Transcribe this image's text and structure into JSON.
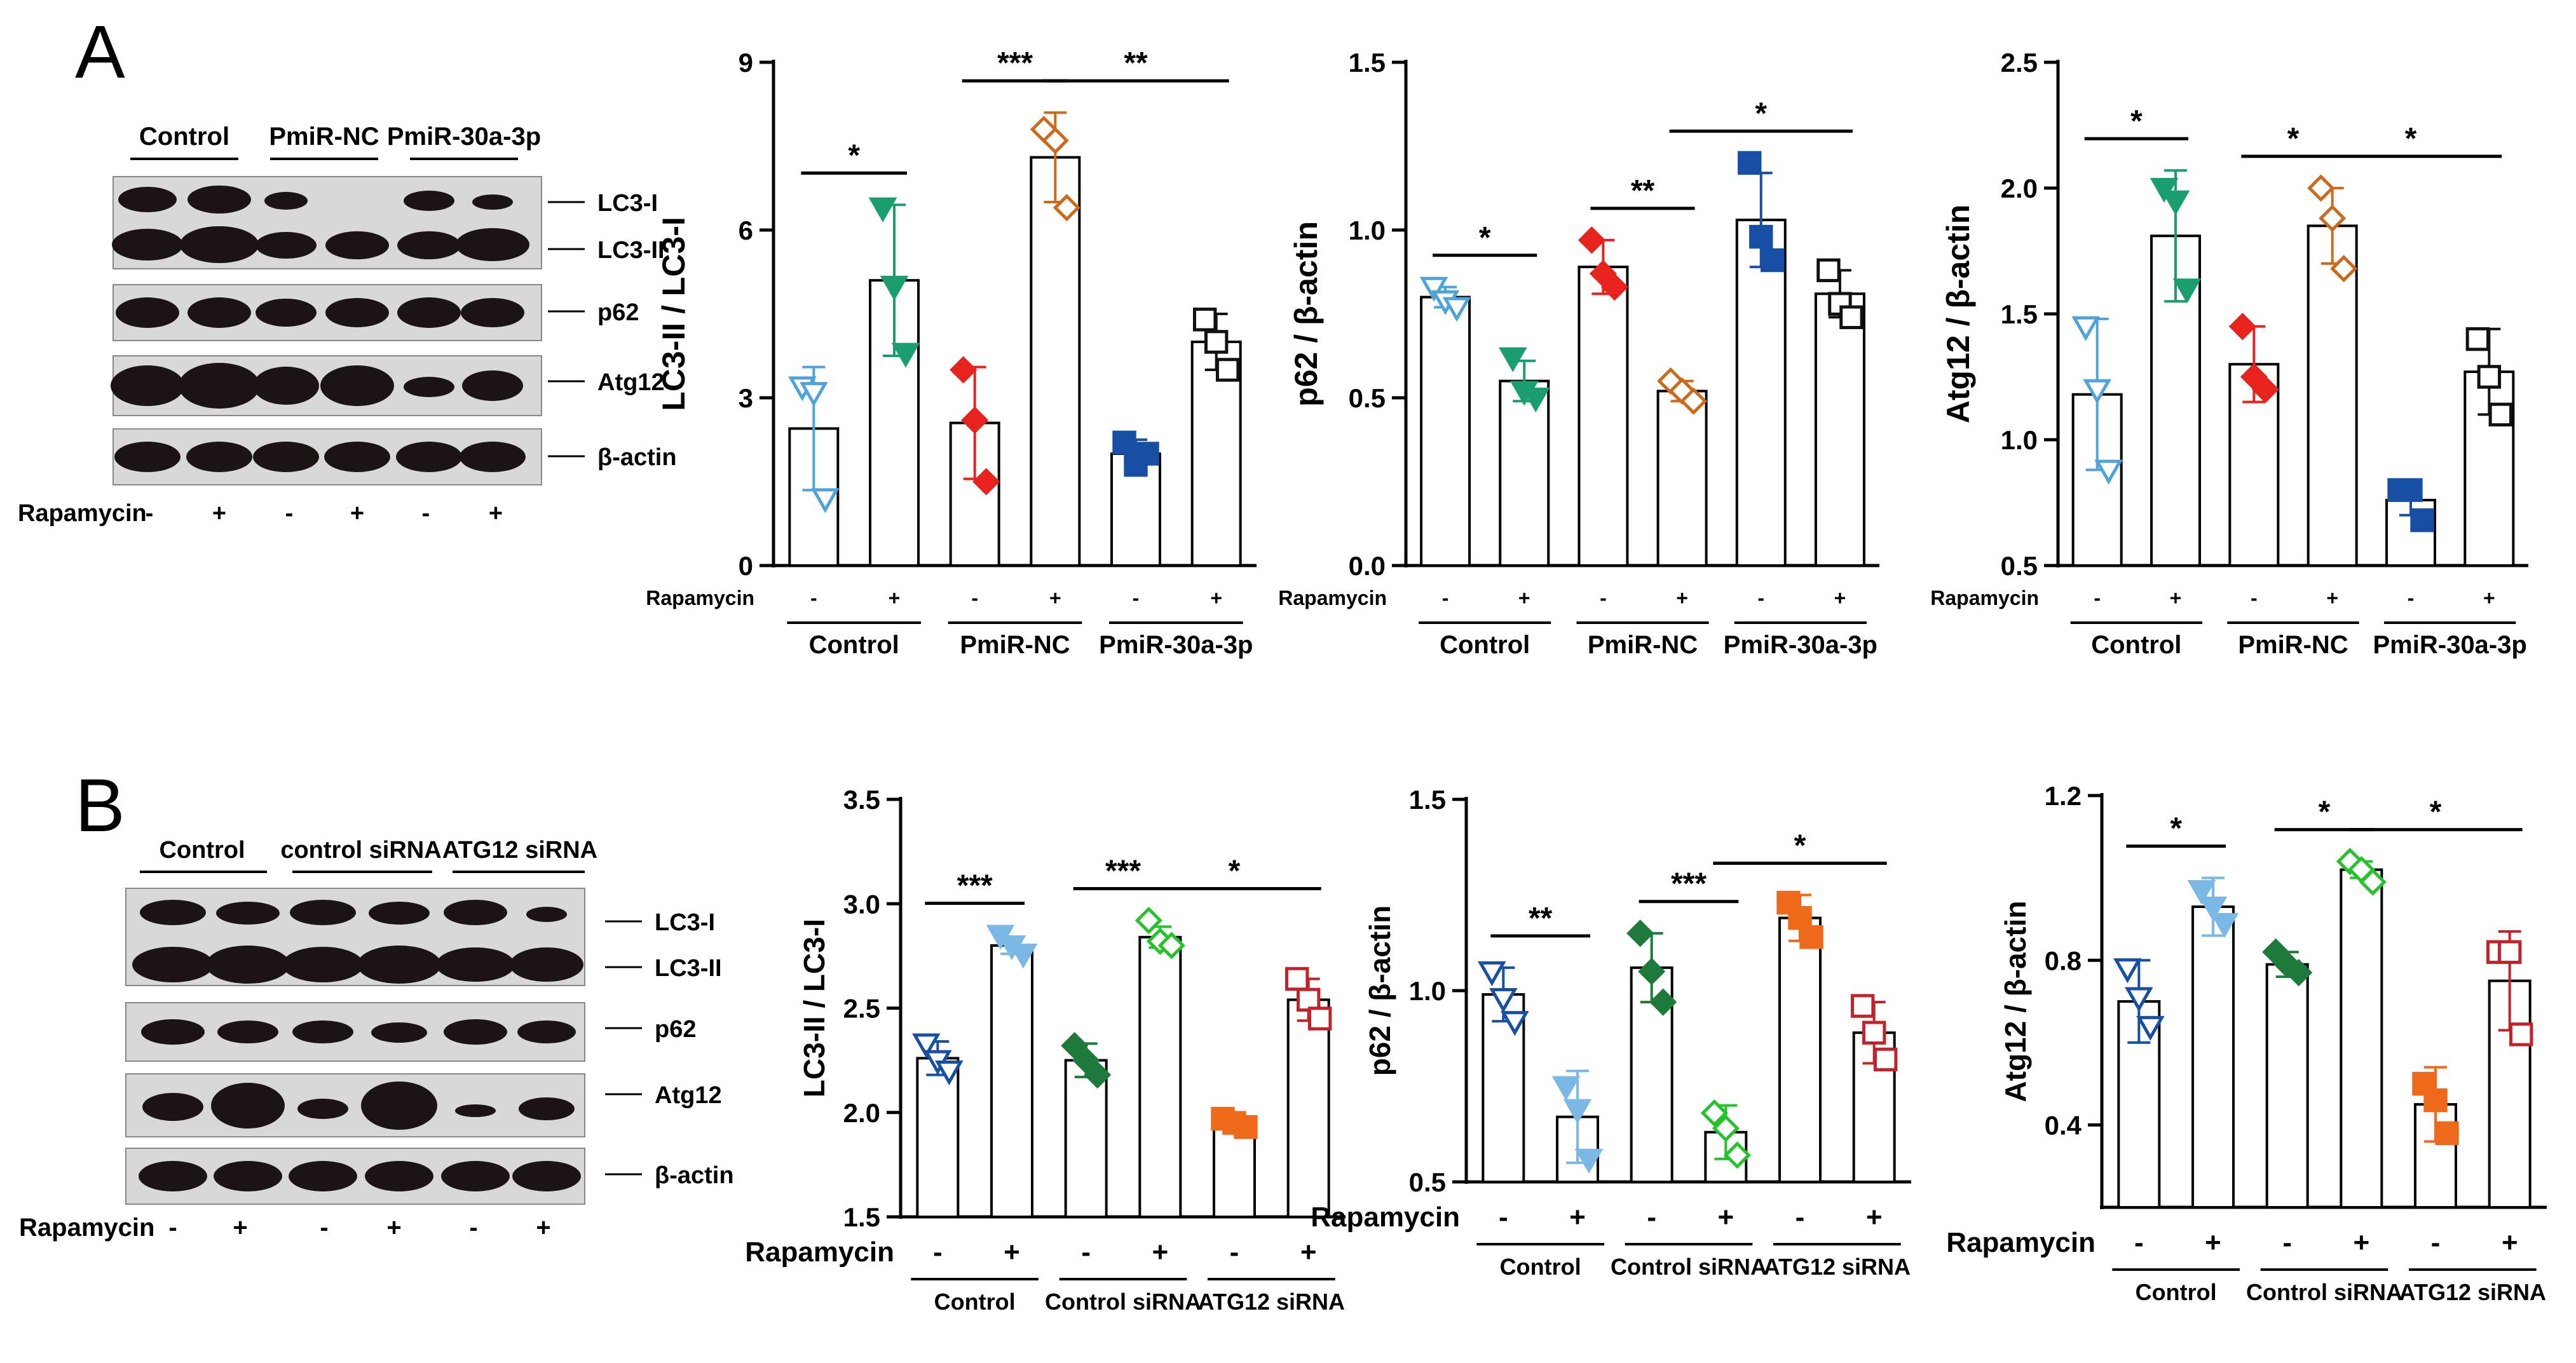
{
  "panels": {
    "A": {
      "letter": "A",
      "blot": {
        "group_labels": [
          "Control",
          "PmiR-NC",
          "PmiR-30a-3p"
        ],
        "band_labels": [
          "LC3-I",
          "LC3-II",
          "p62",
          "Atg12",
          "β-actin"
        ],
        "rapamycin_label": "Rapamycin",
        "treatment_signs": [
          "-",
          "+",
          "-",
          "+",
          "-",
          "+"
        ]
      }
    },
    "B": {
      "letter": "B",
      "blot": {
        "group_labels": [
          "Control",
          "control siRNA",
          "ATG12 siRNA"
        ],
        "band_labels": [
          "LC3-I",
          "LC3-II",
          "p62",
          "Atg12",
          "β-actin"
        ],
        "rapamycin_label": "Rapamycin",
        "treatment_signs": [
          "-",
          "+",
          "-",
          "+",
          "-",
          "+"
        ]
      }
    }
  },
  "chart_data": [
    {
      "type": "bar",
      "panel": "A",
      "ylabel": "LC3-II / LC3-I",
      "ylim": [
        0,
        9
      ],
      "yticks": [
        "0",
        "3",
        "6",
        "9"
      ],
      "rapamycin_label": "Rapamycin",
      "signs": [
        "-",
        "+",
        "-",
        "+",
        "-",
        "+"
      ],
      "groups": [
        "Control",
        "PmiR-NC",
        "PmiR-30a-3p"
      ],
      "values": [
        2.45,
        5.1,
        2.55,
        7.3,
        2.0,
        4.0
      ],
      "sd": [
        1.1,
        1.35,
        1.0,
        0.8,
        0.25,
        0.5
      ],
      "points": [
        [
          3.2,
          3.1,
          1.2
        ],
        [
          6.4,
          5.0,
          3.8
        ],
        [
          3.5,
          2.6,
          1.5
        ],
        [
          7.8,
          7.6,
          6.4
        ],
        [
          2.2,
          1.8,
          2.0
        ],
        [
          4.4,
          4.0,
          3.5
        ]
      ],
      "colors": [
        "#4fa3d9",
        "#1a9e6e",
        "#e8231e",
        "#cc6a1c",
        "#164fa3",
        "#111111"
      ],
      "markers": [
        "tri-down-open",
        "tri-down-filled",
        "diamond-filled",
        "diamond-open",
        "square-filled",
        "square-open"
      ],
      "significance": [
        {
          "from": 0,
          "to": 1,
          "label": "*"
        },
        {
          "from": 2,
          "to": 3,
          "label": "***"
        },
        {
          "from": 3,
          "to": 5,
          "label": "**"
        }
      ]
    },
    {
      "type": "bar",
      "panel": "A",
      "ylabel": "p62 / β-actin",
      "ylim": [
        0,
        1.5
      ],
      "yticks": [
        "0.0",
        "0.5",
        "1.0",
        "1.5"
      ],
      "rapamycin_label": "Rapamycin",
      "signs": [
        "-",
        "+",
        "-",
        "+",
        "-",
        "+"
      ],
      "groups": [
        "Control",
        "PmiR-NC",
        "PmiR-30a-3p"
      ],
      "values": [
        0.8,
        0.55,
        0.89,
        0.52,
        1.03,
        0.81
      ],
      "sd": [
        0.03,
        0.06,
        0.08,
        0.03,
        0.14,
        0.07
      ],
      "points": [
        [
          0.83,
          0.79,
          0.77
        ],
        [
          0.62,
          0.52,
          0.5
        ],
        [
          0.97,
          0.87,
          0.83
        ],
        [
          0.55,
          0.52,
          0.49
        ],
        [
          1.2,
          0.98,
          0.91
        ],
        [
          0.88,
          0.78,
          0.74
        ]
      ],
      "colors": [
        "#4fa3d9",
        "#1a9e6e",
        "#e8231e",
        "#cc6a1c",
        "#164fa3",
        "#111111"
      ],
      "markers": [
        "tri-down-open",
        "tri-down-filled",
        "diamond-filled",
        "diamond-open",
        "square-filled",
        "square-open"
      ],
      "significance": [
        {
          "from": 0,
          "to": 1,
          "label": "*"
        },
        {
          "from": 2,
          "to": 3,
          "label": "**"
        },
        {
          "from": 3,
          "to": 5,
          "label": "*"
        }
      ]
    },
    {
      "type": "bar",
      "panel": "A",
      "ylabel": "Atg12 / β-actin",
      "ylim": [
        0.5,
        2.5
      ],
      "yticks": [
        "0.5",
        "1.0",
        "1.5",
        "2.0",
        "2.5"
      ],
      "rapamycin_label": "Rapamycin",
      "signs": [
        "-",
        "+",
        "-",
        "+",
        "-",
        "+"
      ],
      "groups": [
        "Control",
        "PmiR-NC",
        "PmiR-30a-3p"
      ],
      "values": [
        1.18,
        1.81,
        1.3,
        1.85,
        0.76,
        1.27
      ],
      "sd": [
        0.3,
        0.26,
        0.15,
        0.15,
        0.06,
        0.17
      ],
      "points": [
        [
          1.45,
          1.2,
          0.88
        ],
        [
          2.0,
          1.95,
          1.6
        ],
        [
          1.45,
          1.25,
          1.2
        ],
        [
          2.0,
          1.88,
          1.68
        ],
        [
          0.8,
          0.8,
          0.68
        ],
        [
          1.4,
          1.25,
          1.1
        ]
      ],
      "colors": [
        "#4fa3d9",
        "#1a9e6e",
        "#e8231e",
        "#cc6a1c",
        "#164fa3",
        "#111111"
      ],
      "markers": [
        "tri-down-open",
        "tri-down-filled",
        "diamond-filled",
        "diamond-open",
        "square-filled",
        "square-open"
      ],
      "significance": [
        {
          "from": 0,
          "to": 1,
          "label": "*"
        },
        {
          "from": 2,
          "to": 3,
          "label": "*"
        },
        {
          "from": 3,
          "to": 5,
          "label": "*"
        }
      ]
    },
    {
      "type": "bar",
      "panel": "B",
      "ylabel": "LC3-II / LC3-I",
      "ylim": [
        1.5,
        3.5
      ],
      "yticks": [
        "1.5",
        "2.0",
        "2.5",
        "3.0",
        "3.5"
      ],
      "rapamycin_label": "Rapamycin",
      "signs": [
        "-",
        "+",
        "-",
        "+",
        "-",
        "+"
      ],
      "groups": [
        "Control",
        "Control siRNA",
        "ATG12 siRNA"
      ],
      "values": [
        2.26,
        2.8,
        2.25,
        2.84,
        1.95,
        2.54
      ],
      "sd": [
        0.08,
        0.04,
        0.08,
        0.05,
        0.03,
        0.1
      ],
      "points": [
        [
          2.33,
          2.25,
          2.2
        ],
        [
          2.85,
          2.8,
          2.76
        ],
        [
          2.32,
          2.25,
          2.18
        ],
        [
          2.92,
          2.82,
          2.8
        ],
        [
          1.97,
          1.95,
          1.93
        ],
        [
          2.64,
          2.54,
          2.45
        ]
      ],
      "colors": [
        "#164fa3",
        "#7ab9e6",
        "#1e7a3a",
        "#22c42a",
        "#ee6a1a",
        "#c42128"
      ],
      "markers": [
        "tri-down-open",
        "tri-down-filled",
        "diamond-filled",
        "diamond-open",
        "square-filled",
        "square-open"
      ],
      "significance": [
        {
          "from": 0,
          "to": 1,
          "label": "***"
        },
        {
          "from": 2,
          "to": 3,
          "label": "***"
        },
        {
          "from": 3,
          "to": 5,
          "label": "*"
        }
      ]
    },
    {
      "type": "bar",
      "panel": "B",
      "ylabel": "p62 / β-actin",
      "ylim": [
        0.5,
        1.5
      ],
      "yticks": [
        "0.5",
        "1.0",
        "1.5"
      ],
      "rapamycin_label": "Rapamycin",
      "signs": [
        "-",
        "+",
        "-",
        "+",
        "-",
        "+"
      ],
      "groups": [
        "Control",
        "Control siRNA",
        "ATG12 siRNA"
      ],
      "values": [
        0.99,
        0.67,
        1.06,
        0.63,
        1.19,
        0.89
      ],
      "sd": [
        0.07,
        0.12,
        0.09,
        0.07,
        0.06,
        0.08
      ],
      "points": [
        [
          1.05,
          0.98,
          0.92
        ],
        [
          0.75,
          0.69,
          0.56
        ],
        [
          1.15,
          1.05,
          0.97
        ],
        [
          0.68,
          0.64,
          0.57
        ],
        [
          1.23,
          1.19,
          1.14
        ],
        [
          0.96,
          0.89,
          0.82
        ]
      ],
      "colors": [
        "#164fa3",
        "#7ab9e6",
        "#1e7a3a",
        "#22c42a",
        "#ee6a1a",
        "#c42128"
      ],
      "markers": [
        "tri-down-open",
        "tri-down-filled",
        "diamond-filled",
        "diamond-open",
        "square-filled",
        "square-open"
      ],
      "significance": [
        {
          "from": 0,
          "to": 1,
          "label": "**"
        },
        {
          "from": 2,
          "to": 3,
          "label": "***"
        },
        {
          "from": 3,
          "to": 5,
          "label": "*"
        }
      ]
    },
    {
      "type": "bar",
      "panel": "B",
      "ylabel": "Atg12 / β-actin",
      "ylim": [
        0.2,
        1.2
      ],
      "yticks": [
        "0.4",
        "0.8",
        "1.2"
      ],
      "rapamycin_label": "Rapamycin",
      "signs": [
        "-",
        "+",
        "-",
        "+",
        "-",
        "+"
      ],
      "groups": [
        "Control",
        "Control siRNA",
        "ATG12 siRNA"
      ],
      "values": [
        0.7,
        0.93,
        0.79,
        1.02,
        0.45,
        0.75
      ],
      "sd": [
        0.1,
        0.07,
        0.03,
        0.02,
        0.09,
        0.12
      ],
      "points": [
        [
          0.78,
          0.71,
          0.64
        ],
        [
          0.97,
          0.93,
          0.89
        ],
        [
          0.82,
          0.79,
          0.77
        ],
        [
          1.04,
          1.02,
          0.99
        ],
        [
          0.5,
          0.46,
          0.38
        ],
        [
          0.82,
          0.82,
          0.62
        ]
      ],
      "colors": [
        "#164fa3",
        "#7ab9e6",
        "#1e7a3a",
        "#22c42a",
        "#ee6a1a",
        "#c42128"
      ],
      "markers": [
        "tri-down-open",
        "tri-down-filled",
        "diamond-filled",
        "diamond-open",
        "square-filled",
        "square-open"
      ],
      "significance": [
        {
          "from": 0,
          "to": 1,
          "label": "*"
        },
        {
          "from": 2,
          "to": 3,
          "label": "*"
        },
        {
          "from": 3,
          "to": 5,
          "label": "*"
        }
      ]
    }
  ]
}
